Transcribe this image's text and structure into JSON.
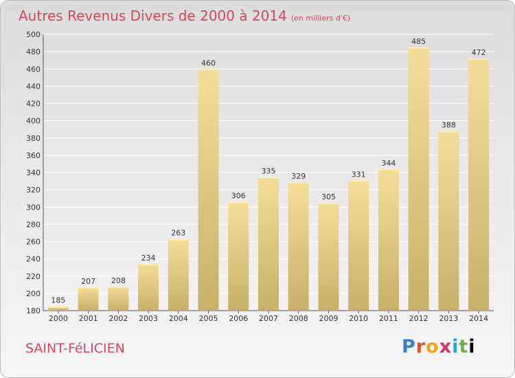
{
  "header": {
    "title": "Autres Revenus Divers de 2000 à 2014",
    "unit": "(en milliers d'€)"
  },
  "footer": {
    "commune": "SAINT-FéLICIEN",
    "logo": [
      "P",
      "r",
      "o",
      "x",
      "i",
      "t",
      "i"
    ]
  },
  "colors": {
    "title": "#d1485f",
    "bar_light": "#f4de99",
    "bar_dark": "#c8b068",
    "grid": "#ffffff"
  },
  "chart_data": {
    "type": "bar",
    "title": "Autres Revenus Divers de 2000 à 2014",
    "xlabel": "",
    "ylabel": "",
    "categories": [
      "2000",
      "2001",
      "2002",
      "2003",
      "2004",
      "2005",
      "2006",
      "2007",
      "2008",
      "2009",
      "2010",
      "2011",
      "2012",
      "2013",
      "2014"
    ],
    "values": [
      185,
      207,
      208,
      234,
      263,
      460,
      306,
      335,
      329,
      305,
      331,
      344,
      485,
      388,
      472
    ],
    "ylim": [
      180,
      500
    ],
    "yticks": [
      180,
      200,
      220,
      240,
      260,
      280,
      300,
      320,
      340,
      360,
      380,
      400,
      420,
      440,
      460,
      480,
      500
    ],
    "grid": true,
    "legend": "none"
  }
}
